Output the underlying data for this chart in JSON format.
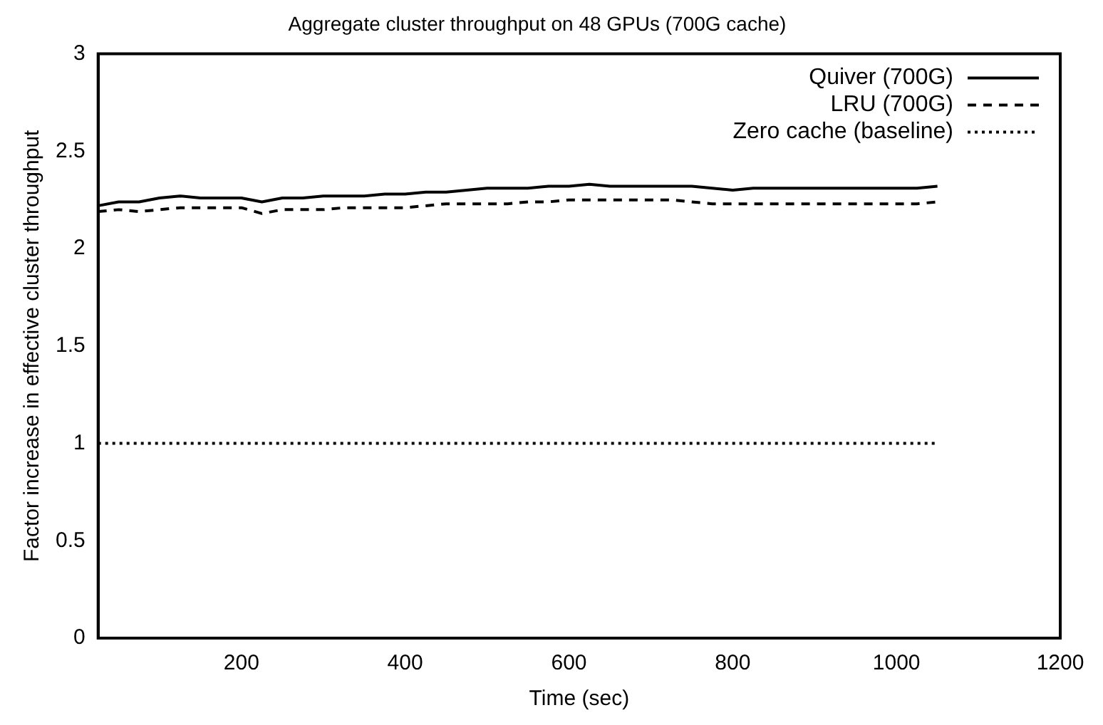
{
  "chart_data": {
    "type": "line",
    "title": "Aggregate cluster throughput on 48 GPUs (700G cache)",
    "xlabel": "Time (sec)",
    "ylabel": "Factor increase in effective cluster throughput",
    "xlim": [
      25,
      1200
    ],
    "xticks": [
      200,
      400,
      600,
      800,
      1000,
      1200
    ],
    "ylim": [
      0,
      3
    ],
    "yticks": [
      0,
      0.5,
      1,
      1.5,
      2,
      2.5,
      3
    ],
    "grid": false,
    "legend": "top right",
    "marker": "none",
    "series": [
      {
        "name": "Quiver (700G)",
        "color": "#000000",
        "line_style": "solid",
        "x": [
          25,
          50,
          75,
          100,
          125,
          150,
          175,
          200,
          225,
          250,
          275,
          300,
          325,
          350,
          375,
          400,
          425,
          450,
          475,
          500,
          525,
          550,
          575,
          600,
          625,
          650,
          675,
          700,
          725,
          750,
          775,
          800,
          825,
          850,
          875,
          900,
          925,
          950,
          975,
          1000,
          1025,
          1050
        ],
        "values": [
          2.22,
          2.24,
          2.24,
          2.26,
          2.27,
          2.26,
          2.26,
          2.26,
          2.24,
          2.26,
          2.26,
          2.27,
          2.27,
          2.27,
          2.28,
          2.28,
          2.29,
          2.29,
          2.3,
          2.31,
          2.31,
          2.31,
          2.32,
          2.32,
          2.33,
          2.32,
          2.32,
          2.32,
          2.32,
          2.32,
          2.31,
          2.3,
          2.31,
          2.31,
          2.31,
          2.31,
          2.31,
          2.31,
          2.31,
          2.31,
          2.31,
          2.32
        ]
      },
      {
        "name": "LRU (700G)",
        "color": "#000000",
        "line_style": "dashed",
        "x": [
          25,
          50,
          75,
          100,
          125,
          150,
          175,
          200,
          225,
          250,
          275,
          300,
          325,
          350,
          375,
          400,
          425,
          450,
          475,
          500,
          525,
          550,
          575,
          600,
          625,
          650,
          675,
          700,
          725,
          750,
          775,
          800,
          825,
          850,
          875,
          900,
          925,
          950,
          975,
          1000,
          1025,
          1050
        ],
        "values": [
          2.19,
          2.2,
          2.19,
          2.2,
          2.21,
          2.21,
          2.21,
          2.21,
          2.18,
          2.2,
          2.2,
          2.2,
          2.21,
          2.21,
          2.21,
          2.21,
          2.22,
          2.23,
          2.23,
          2.23,
          2.23,
          2.24,
          2.24,
          2.25,
          2.25,
          2.25,
          2.25,
          2.25,
          2.25,
          2.24,
          2.23,
          2.23,
          2.23,
          2.23,
          2.23,
          2.23,
          2.23,
          2.23,
          2.23,
          2.23,
          2.23,
          2.24
        ]
      },
      {
        "name": "Zero cache (baseline)",
        "color": "#000000",
        "line_style": "dotted",
        "x": [
          25,
          1050
        ],
        "values": [
          1,
          1
        ]
      }
    ]
  }
}
